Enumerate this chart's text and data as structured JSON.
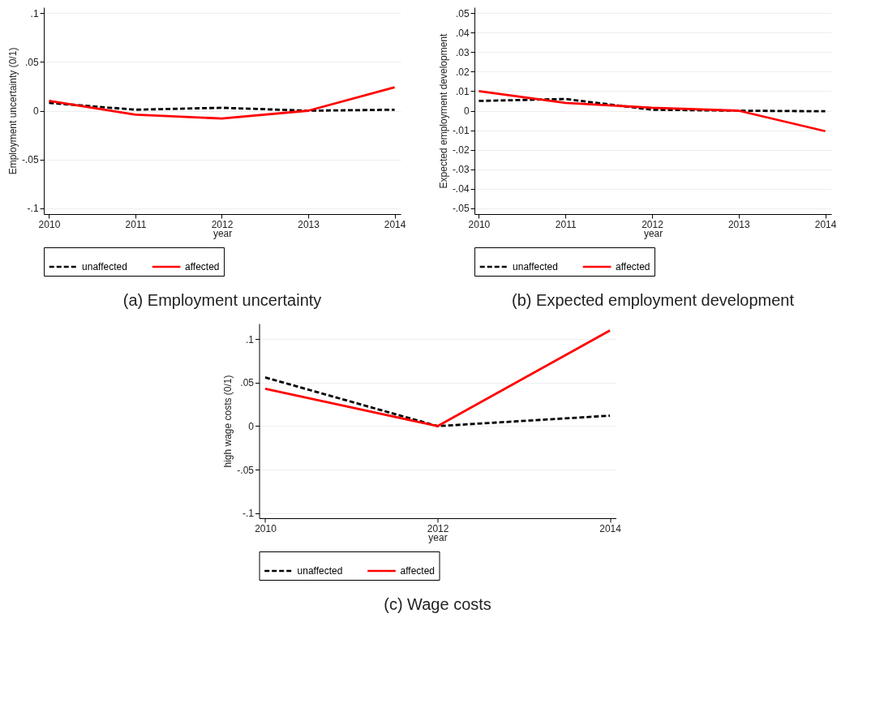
{
  "chart_data": [
    {
      "type": "line",
      "title": "(a) Employment uncertainty",
      "xlabel": "year",
      "ylabel": "Employment uncertainty (0/1)",
      "x": [
        2010,
        2011,
        2012,
        2013,
        2014
      ],
      "xlim": [
        2009.94,
        2014.07
      ],
      "xticks": [
        2010,
        2011,
        2012,
        2013,
        2014
      ],
      "ylim": [
        -0.106,
        0.106
      ],
      "yticks": [
        {
          "value": -0.1,
          "label": "-.1"
        },
        {
          "value": -0.05,
          "label": "-.05"
        },
        {
          "value": 0,
          "label": "0"
        },
        {
          "value": 0.05,
          "label": ".05"
        },
        {
          "value": 0.1,
          "label": ".1"
        }
      ],
      "grid": "y",
      "legend": "bottom",
      "series": [
        {
          "name": "unaffected",
          "color": "#000000",
          "line_style": "dashed",
          "values": [
            0.008,
            0.001,
            0.003,
            0,
            0.001
          ]
        },
        {
          "name": "affected",
          "color": "#ff0000",
          "line_style": "solid",
          "values": [
            0.01,
            -0.004,
            -0.008,
            0,
            0.024
          ]
        }
      ]
    },
    {
      "type": "line",
      "title": "(b) Expected employment development",
      "xlabel": "year",
      "ylabel": "Expected employment development",
      "x": [
        2010,
        2011,
        2012,
        2013,
        2014
      ],
      "xlim": [
        2009.95,
        2014.07
      ],
      "xticks": [
        2010,
        2011,
        2012,
        2013,
        2014
      ],
      "ylim": [
        -0.053,
        0.053
      ],
      "yticks": [
        {
          "value": -0.05,
          "label": "-.05"
        },
        {
          "value": -0.04,
          "label": "-.04"
        },
        {
          "value": -0.03,
          "label": "-.03"
        },
        {
          "value": -0.02,
          "label": "-.02"
        },
        {
          "value": -0.01,
          "label": "-.01"
        },
        {
          "value": 0,
          "label": "0"
        },
        {
          "value": 0.01,
          "label": ".01"
        },
        {
          "value": 0.02,
          "label": ".02"
        },
        {
          "value": 0.03,
          "label": ".03"
        },
        {
          "value": 0.04,
          "label": ".04"
        },
        {
          "value": 0.05,
          "label": ".05"
        }
      ],
      "grid": "y",
      "legend": "bottom",
      "series": [
        {
          "name": "unaffected",
          "color": "#000000",
          "line_style": "dashed",
          "values": [
            0.005,
            0.006,
            0.0005,
            0,
            -0.0003
          ]
        },
        {
          "name": "affected",
          "color": "#ff0000",
          "line_style": "solid",
          "values": [
            0.01,
            0.004,
            0.0015,
            0,
            -0.0105
          ]
        }
      ]
    },
    {
      "type": "line",
      "title": "(c) Wage costs",
      "xlabel": "year",
      "ylabel": "high wage costs (0/1)",
      "x": [
        2010,
        2012,
        2014
      ],
      "xlim": [
        2009.93,
        2014.07
      ],
      "xticks": [
        2010,
        2012,
        2014
      ],
      "ylim": [
        -0.106,
        0.118
      ],
      "yticks": [
        {
          "value": -0.1,
          "label": "-.1"
        },
        {
          "value": -0.05,
          "label": "-.05"
        },
        {
          "value": 0,
          "label": "0"
        },
        {
          "value": 0.05,
          "label": ".05"
        },
        {
          "value": 0.1,
          "label": ".1"
        }
      ],
      "grid": "y",
      "legend": "bottom",
      "series": [
        {
          "name": "unaffected",
          "color": "#000000",
          "line_style": "dashed",
          "values": [
            0.056,
            0,
            0.012
          ]
        },
        {
          "name": "affected",
          "color": "#ff0000",
          "line_style": "solid",
          "values": [
            0.043,
            0,
            0.11
          ]
        }
      ]
    }
  ]
}
